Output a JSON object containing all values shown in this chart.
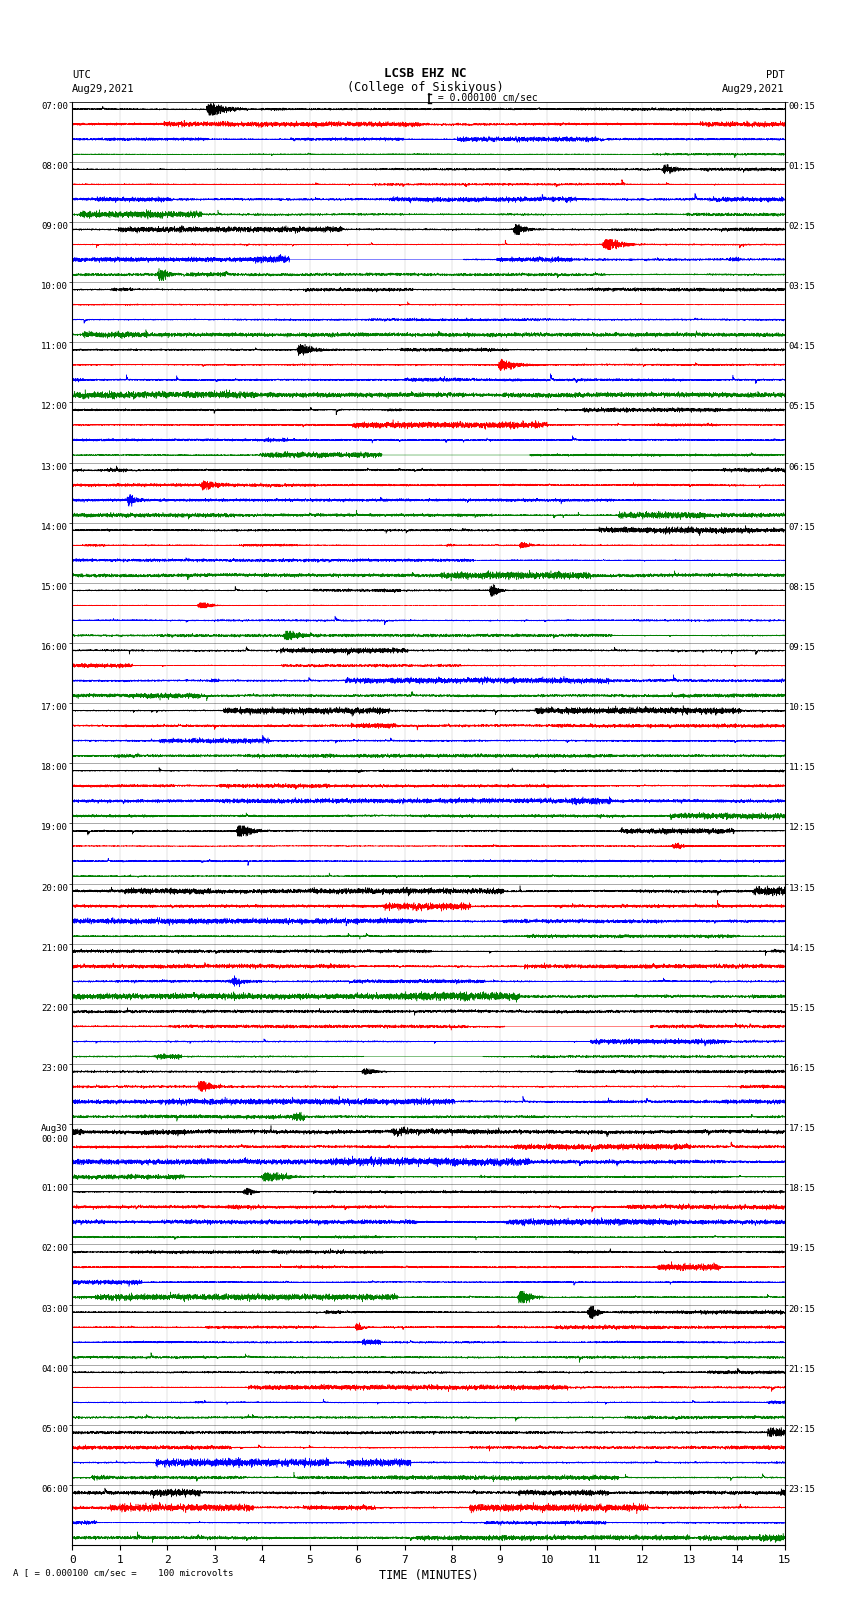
{
  "title_line1": "LCSB EHZ NC",
  "title_line2": "(College of Siskiyous)",
  "scale_label": " = 0.000100 cm/sec",
  "left_timezone": "UTC",
  "right_timezone": "PDT",
  "left_date": "Aug29,2021",
  "right_date": "Aug29,2021",
  "bottom_label": "TIME (MINUTES)",
  "bottom_note": "A [ = 0.000100 cm/sec =    100 microvolts",
  "xlabel_ticks": [
    0,
    1,
    2,
    3,
    4,
    5,
    6,
    7,
    8,
    9,
    10,
    11,
    12,
    13,
    14,
    15
  ],
  "utc_times_labeled": [
    "07:00",
    "08:00",
    "09:00",
    "10:00",
    "11:00",
    "12:00",
    "13:00",
    "14:00",
    "15:00",
    "16:00",
    "17:00",
    "18:00",
    "19:00",
    "20:00",
    "21:00",
    "22:00",
    "23:00",
    "Aug30\n00:00",
    "01:00",
    "02:00",
    "03:00",
    "04:00",
    "05:00",
    "06:00"
  ],
  "pdt_times_labeled": [
    "00:15",
    "01:15",
    "02:15",
    "03:15",
    "04:15",
    "05:15",
    "06:15",
    "07:15",
    "08:15",
    "09:15",
    "10:15",
    "11:15",
    "12:15",
    "13:15",
    "14:15",
    "15:15",
    "16:15",
    "17:15",
    "18:15",
    "19:15",
    "20:15",
    "21:15",
    "22:15",
    "23:15"
  ],
  "n_rows": 96,
  "n_groups": 24,
  "traces_per_group": 4,
  "colors_cycle": [
    "black",
    "red",
    "blue",
    "green"
  ],
  "bg_color": "white",
  "x_min": 0,
  "x_max": 15
}
